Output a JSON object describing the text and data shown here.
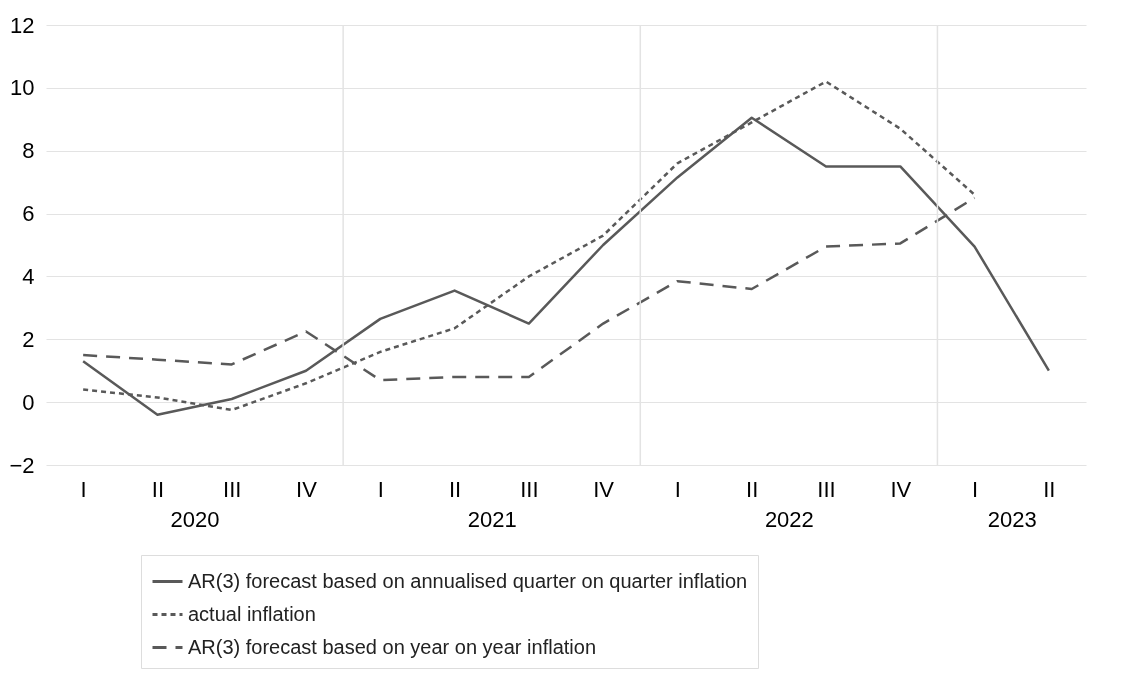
{
  "chart_data": {
    "type": "line",
    "categories": [
      "I",
      "II",
      "III",
      "IV",
      "I",
      "II",
      "III",
      "IV",
      "I",
      "II",
      "III",
      "IV",
      "I",
      "II"
    ],
    "annotations": [
      "2020",
      "2021",
      "2022",
      "2023"
    ],
    "series": [
      {
        "name": "AR(3) forecast based on annualised quarter on quarter inflation",
        "color": "#595959",
        "line_style": "solid",
        "values": [
          1.3,
          -0.4,
          0.1,
          1.0,
          2.65,
          3.55,
          2.5,
          5.0,
          7.15,
          9.05,
          7.5,
          7.5,
          4.95,
          1.0
        ]
      },
      {
        "name": "actual inflation",
        "color": "#595959",
        "line_style": "dotted",
        "values": [
          0.4,
          0.15,
          -0.25,
          0.6,
          1.6,
          2.35,
          4.0,
          5.3,
          7.6,
          8.9,
          10.2,
          8.7,
          6.6,
          null
        ]
      },
      {
        "name": "AR(3) forecast based on year on year inflation",
        "color": "#595959",
        "line_style": "dashed",
        "values": [
          1.5,
          1.35,
          1.2,
          2.25,
          0.7,
          0.8,
          0.8,
          2.5,
          3.85,
          3.6,
          4.95,
          5.05,
          6.5,
          null
        ]
      }
    ],
    "ylim": [
      -2,
      12
    ],
    "yticks": [
      -2,
      0,
      2,
      4,
      6,
      8,
      10,
      12
    ],
    "grid": true,
    "legend": "bottom"
  }
}
